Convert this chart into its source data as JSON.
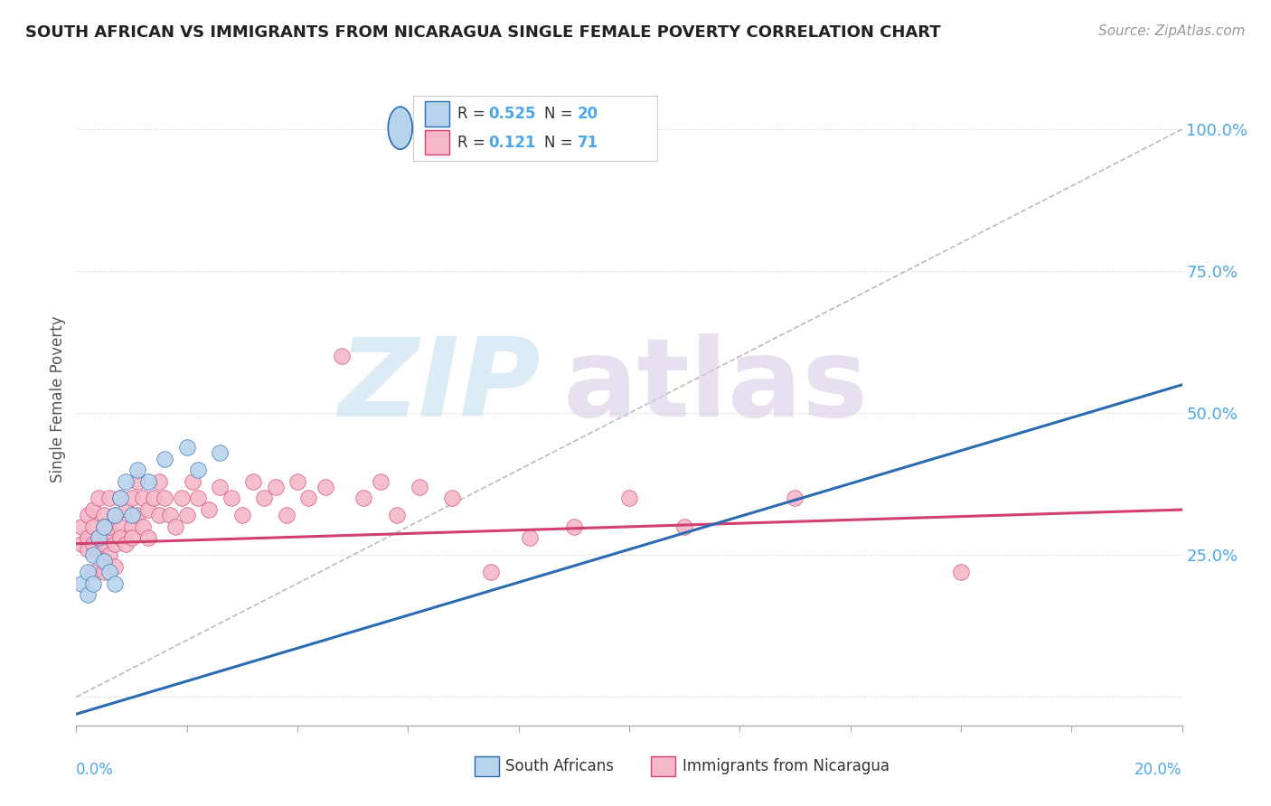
{
  "title": "SOUTH AFRICAN VS IMMIGRANTS FROM NICARAGUA SINGLE FEMALE POVERTY CORRELATION CHART",
  "source": "Source: ZipAtlas.com",
  "ylabel": "Single Female Poverty",
  "blue_R": 0.525,
  "blue_N": 20,
  "pink_R": 0.121,
  "pink_N": 71,
  "blue_color": "#b8d4ec",
  "pink_color": "#f5b8c8",
  "blue_line_color": "#2a6ab0",
  "pink_line_color": "#d04070",
  "xlim": [
    0.0,
    0.2
  ],
  "ylim": [
    -0.05,
    1.1
  ],
  "background_color": "#ffffff",
  "blue_scatter_x": [
    0.001,
    0.002,
    0.002,
    0.003,
    0.003,
    0.004,
    0.005,
    0.005,
    0.006,
    0.007,
    0.007,
    0.008,
    0.009,
    0.01,
    0.011,
    0.013,
    0.016,
    0.02,
    0.022,
    0.026
  ],
  "blue_scatter_y": [
    0.2,
    0.18,
    0.22,
    0.25,
    0.2,
    0.28,
    0.24,
    0.3,
    0.22,
    0.32,
    0.2,
    0.35,
    0.38,
    0.32,
    0.4,
    0.38,
    0.42,
    0.44,
    0.4,
    0.43
  ],
  "pink_scatter_x": [
    0.001,
    0.001,
    0.002,
    0.002,
    0.002,
    0.003,
    0.003,
    0.003,
    0.003,
    0.004,
    0.004,
    0.004,
    0.005,
    0.005,
    0.005,
    0.005,
    0.006,
    0.006,
    0.006,
    0.006,
    0.007,
    0.007,
    0.007,
    0.008,
    0.008,
    0.008,
    0.009,
    0.009,
    0.01,
    0.01,
    0.01,
    0.011,
    0.011,
    0.012,
    0.012,
    0.013,
    0.013,
    0.014,
    0.015,
    0.015,
    0.016,
    0.017,
    0.018,
    0.019,
    0.02,
    0.021,
    0.022,
    0.024,
    0.026,
    0.028,
    0.03,
    0.032,
    0.034,
    0.036,
    0.038,
    0.04,
    0.042,
    0.045,
    0.048,
    0.052,
    0.055,
    0.058,
    0.062,
    0.068,
    0.075,
    0.082,
    0.09,
    0.1,
    0.11,
    0.13,
    0.16
  ],
  "pink_scatter_y": [
    0.27,
    0.3,
    0.28,
    0.32,
    0.26,
    0.3,
    0.27,
    0.33,
    0.22,
    0.35,
    0.28,
    0.25,
    0.32,
    0.27,
    0.3,
    0.22,
    0.35,
    0.28,
    0.25,
    0.3,
    0.32,
    0.27,
    0.23,
    0.3,
    0.35,
    0.28,
    0.33,
    0.27,
    0.35,
    0.3,
    0.28,
    0.32,
    0.38,
    0.3,
    0.35,
    0.33,
    0.28,
    0.35,
    0.32,
    0.38,
    0.35,
    0.32,
    0.3,
    0.35,
    0.32,
    0.38,
    0.35,
    0.33,
    0.37,
    0.35,
    0.32,
    0.38,
    0.35,
    0.37,
    0.32,
    0.38,
    0.35,
    0.37,
    0.6,
    0.35,
    0.38,
    0.32,
    0.37,
    0.35,
    0.22,
    0.28,
    0.3,
    0.35,
    0.3,
    0.35,
    0.22
  ],
  "blue_trend_x": [
    0.0,
    0.2
  ],
  "blue_trend_y": [
    -0.03,
    0.55
  ],
  "pink_trend_x": [
    0.0,
    0.2
  ],
  "pink_trend_y": [
    0.27,
    0.33
  ],
  "ref_line_x": [
    0.0,
    0.2
  ],
  "ref_line_y": [
    0.0,
    1.0
  ],
  "ytick_vals": [
    0.0,
    0.25,
    0.5,
    0.75,
    1.0
  ],
  "ytick_labels": [
    "",
    "25.0%",
    "50.0%",
    "75.0%",
    "100.0%"
  ],
  "watermark_zip_color": "#cce4f4",
  "watermark_atlas_color": "#d8cce8"
}
